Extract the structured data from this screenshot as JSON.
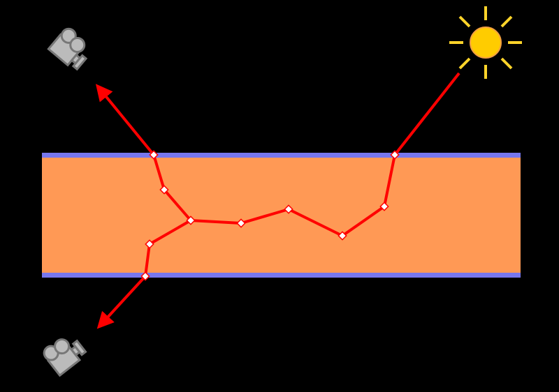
{
  "colors": {
    "background": "#000000",
    "medium": "#FF9955",
    "boundary": "#7777EE",
    "ray": "#FF0000",
    "scatter_point": "#FFFFFF",
    "sun_body": "#FFCC00",
    "sun_rays": "#FFD42A",
    "camera": "#BBBBBB"
  },
  "icons": [
    "sun-icon",
    "camera-icon-top",
    "camera-icon-bottom"
  ]
}
